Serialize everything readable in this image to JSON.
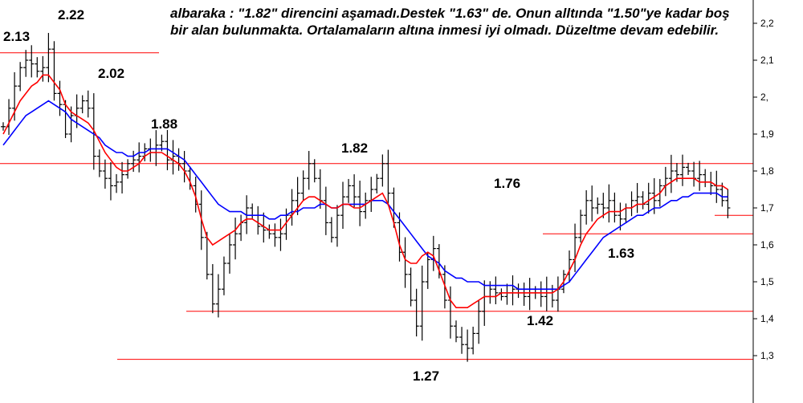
{
  "annotation": "albaraka : \"1.82\" direncini aşamadı.Destek \"1.63\" de. Onun alltında \"1.50\"ye kadar boş bir alan bulunmakta. Ortalamaların altına inmesi iyi olmadı. Düzeltme devam edebilir.",
  "chart_data": {
    "type": "candlestick",
    "y_axis_side": "right",
    "ylim": [
      1.25,
      2.27
    ],
    "y_ticks": [
      {
        "value": 2.2,
        "label": "2,2"
      },
      {
        "value": 2.1,
        "label": "2,1"
      },
      {
        "value": 2.0,
        "label": "2,"
      },
      {
        "value": 1.9,
        "label": "1,9"
      },
      {
        "value": 1.8,
        "label": "1,8"
      },
      {
        "value": 1.7,
        "label": "1,7"
      },
      {
        "value": 1.6,
        "label": "1,6"
      },
      {
        "value": 1.5,
        "label": "1,5"
      },
      {
        "value": 1.4,
        "label": "1,4"
      },
      {
        "value": 1.3,
        "label": "1,3"
      }
    ],
    "colors": {
      "bars": "#000000",
      "fast_ma": "#ff0000",
      "slow_ma": "#0000ff",
      "level_lines": "#ff0000"
    },
    "price_labels": [
      "2.13",
      "2.22",
      "2.02",
      "1.88",
      "1.82",
      "1.76",
      "1.63",
      "1.42",
      "1.27"
    ],
    "horizontal_levels": [
      2.12,
      1.82,
      1.68,
      1.63,
      1.42,
      1.29
    ],
    "close_series": [
      1.92,
      1.97,
      2.03,
      2.08,
      2.1,
      2.09,
      2.07,
      2.08,
      2.13,
      2.01,
      1.98,
      1.9,
      1.95,
      1.97,
      1.99,
      1.97,
      1.84,
      1.8,
      1.78,
      1.76,
      1.77,
      1.79,
      1.82,
      1.83,
      1.84,
      1.86,
      1.85,
      1.87,
      1.88,
      1.83,
      1.84,
      1.82,
      1.8,
      1.76,
      1.71,
      1.62,
      1.52,
      1.44,
      1.48,
      1.55,
      1.6,
      1.63,
      1.66,
      1.7,
      1.68,
      1.65,
      1.64,
      1.63,
      1.62,
      1.63,
      1.68,
      1.72,
      1.74,
      1.78,
      1.82,
      1.78,
      1.72,
      1.66,
      1.62,
      1.68,
      1.73,
      1.76,
      1.73,
      1.69,
      1.72,
      1.75,
      1.78,
      1.82,
      1.74,
      1.66,
      1.58,
      1.52,
      1.45,
      1.38,
      1.5,
      1.56,
      1.59,
      1.52,
      1.45,
      1.38,
      1.35,
      1.33,
      1.32,
      1.36,
      1.42,
      1.46,
      1.48,
      1.47,
      1.46,
      1.47,
      1.48,
      1.47,
      1.46,
      1.47,
      1.47,
      1.46,
      1.47,
      1.45,
      1.48,
      1.52,
      1.56,
      1.62,
      1.68,
      1.72,
      1.7,
      1.71,
      1.7,
      1.72,
      1.68,
      1.67,
      1.7,
      1.72,
      1.73,
      1.71,
      1.74,
      1.72,
      1.76,
      1.78,
      1.8,
      1.79,
      1.81,
      1.8,
      1.78,
      1.79,
      1.77,
      1.76,
      1.75,
      1.72,
      1.7
    ],
    "fast_ma": [
      1.9,
      1.93,
      1.96,
      1.99,
      2.01,
      2.03,
      2.04,
      2.06,
      2.06,
      2.04,
      2.02,
      1.98,
      1.96,
      1.95,
      1.94,
      1.93,
      1.91,
      1.88,
      1.85,
      1.83,
      1.81,
      1.8,
      1.8,
      1.81,
      1.82,
      1.84,
      1.85,
      1.85,
      1.85,
      1.84,
      1.83,
      1.82,
      1.8,
      1.77,
      1.73,
      1.67,
      1.62,
      1.6,
      1.61,
      1.62,
      1.63,
      1.64,
      1.66,
      1.67,
      1.67,
      1.66,
      1.65,
      1.64,
      1.64,
      1.64,
      1.66,
      1.68,
      1.7,
      1.72,
      1.73,
      1.73,
      1.72,
      1.71,
      1.7,
      1.7,
      1.71,
      1.71,
      1.7,
      1.7,
      1.71,
      1.72,
      1.73,
      1.74,
      1.71,
      1.66,
      1.6,
      1.56,
      1.55,
      1.55,
      1.57,
      1.58,
      1.57,
      1.53,
      1.49,
      1.45,
      1.43,
      1.43,
      1.43,
      1.44,
      1.45,
      1.46,
      1.46,
      1.46,
      1.47,
      1.47,
      1.47,
      1.47,
      1.47,
      1.47,
      1.47,
      1.47,
      1.47,
      1.47,
      1.48,
      1.5,
      1.53,
      1.56,
      1.6,
      1.63,
      1.65,
      1.67,
      1.68,
      1.69,
      1.69,
      1.69,
      1.7,
      1.7,
      1.71,
      1.71,
      1.72,
      1.73,
      1.74,
      1.76,
      1.77,
      1.78,
      1.78,
      1.78,
      1.78,
      1.77,
      1.77,
      1.77,
      1.76,
      1.76,
      1.75
    ],
    "slow_ma": [
      1.87,
      1.89,
      1.91,
      1.93,
      1.95,
      1.96,
      1.97,
      1.98,
      1.99,
      1.98,
      1.97,
      1.96,
      1.94,
      1.93,
      1.92,
      1.91,
      1.9,
      1.89,
      1.87,
      1.86,
      1.85,
      1.85,
      1.84,
      1.84,
      1.85,
      1.85,
      1.86,
      1.86,
      1.86,
      1.86,
      1.85,
      1.84,
      1.83,
      1.81,
      1.79,
      1.77,
      1.75,
      1.73,
      1.71,
      1.7,
      1.69,
      1.69,
      1.69,
      1.68,
      1.68,
      1.68,
      1.68,
      1.67,
      1.67,
      1.68,
      1.68,
      1.69,
      1.69,
      1.7,
      1.7,
      1.7,
      1.71,
      1.71,
      1.7,
      1.7,
      1.71,
      1.71,
      1.71,
      1.71,
      1.71,
      1.72,
      1.72,
      1.72,
      1.71,
      1.69,
      1.67,
      1.65,
      1.63,
      1.61,
      1.59,
      1.57,
      1.56,
      1.55,
      1.53,
      1.52,
      1.51,
      1.51,
      1.5,
      1.5,
      1.5,
      1.49,
      1.49,
      1.49,
      1.49,
      1.49,
      1.49,
      1.48,
      1.48,
      1.48,
      1.48,
      1.48,
      1.48,
      1.48,
      1.48,
      1.49,
      1.5,
      1.52,
      1.54,
      1.56,
      1.58,
      1.6,
      1.62,
      1.63,
      1.64,
      1.65,
      1.66,
      1.67,
      1.68,
      1.68,
      1.69,
      1.7,
      1.7,
      1.71,
      1.72,
      1.72,
      1.73,
      1.73,
      1.74,
      1.74,
      1.74,
      1.74,
      1.74,
      1.73,
      1.73
    ]
  }
}
